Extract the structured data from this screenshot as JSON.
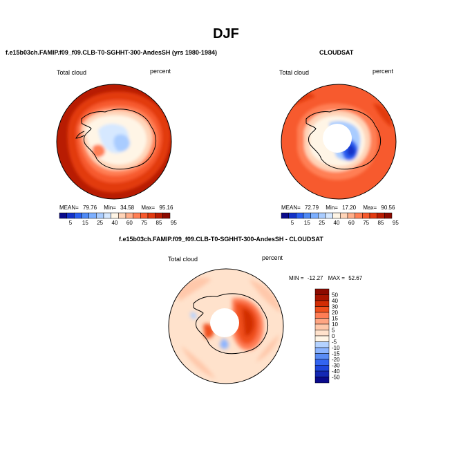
{
  "title": "DJF",
  "colors": {
    "abs_scale": [
      "#0a0a8c",
      "#1432c8",
      "#2a5ff0",
      "#4f8af5",
      "#7cafff",
      "#a9ccff",
      "#d6e8ff",
      "#fff5e6",
      "#ffd4b8",
      "#ffae8a",
      "#ff7f55",
      "#f75a2e",
      "#e23a10",
      "#b81c02",
      "#8c0a00"
    ],
    "diff_scale": [
      "#0a0a8c",
      "#1428b4",
      "#1e46dc",
      "#3264f0",
      "#5a8cf5",
      "#8cb4ff",
      "#b4d2ff",
      "#fff5e6",
      "#ffe2cc",
      "#ffc8aa",
      "#ffa582",
      "#ff7d55",
      "#f0501e",
      "#d22d05",
      "#a81400",
      "#8c0a00"
    ],
    "land_outline": "#000000"
  },
  "chart_data": [
    {
      "type": "heatmap",
      "projection": "polar-stereographic-south",
      "title": "f.e15b03ch.FAMIP.f09_f09.CLB-T0-SGHHT-300-AndesSH (yrs 1980-1984)",
      "left_label": "Total cloud",
      "right_label": "percent",
      "stats": {
        "mean": "79.76",
        "min": "34.58",
        "max": "95.16"
      },
      "stats_labels": {
        "mean": "MEAN=",
        "min": "Min=",
        "max": "Max="
      },
      "colorbar_ticks": [
        "5",
        "15",
        "25",
        "40",
        "60",
        "75",
        "85",
        "95"
      ],
      "levels": [
        5,
        10,
        15,
        20,
        25,
        30,
        40,
        50,
        60,
        70,
        75,
        80,
        85,
        90,
        95
      ],
      "field": {
        "ocean": 92,
        "coast_ring": [
          85,
          75,
          60,
          50
        ],
        "interior": 40,
        "interior_low": 30,
        "west_low": 50
      }
    },
    {
      "type": "heatmap",
      "projection": "polar-stereographic-south",
      "title": "CLOUDSAT",
      "left_label": "Total cloud",
      "right_label": "percent",
      "stats": {
        "mean": "72.79",
        "min": "17.20",
        "max": "90.56"
      },
      "stats_labels": {
        "mean": "MEAN=",
        "min": "Min=",
        "max": "Max="
      },
      "colorbar_ticks": [
        "5",
        "15",
        "25",
        "40",
        "60",
        "75",
        "85",
        "95"
      ],
      "levels": [
        5,
        10,
        15,
        20,
        25,
        30,
        40,
        50,
        60,
        70,
        75,
        80,
        85,
        90,
        95
      ],
      "field": {
        "ocean": 85,
        "coast_ring": [
          75,
          60,
          50
        ],
        "interior": 40,
        "east_low": 20,
        "missing_pole": true
      }
    },
    {
      "type": "heatmap",
      "projection": "polar-stereographic-south",
      "title": "f.e15b03ch.FAMIP.f09_f09.CLB-T0-SGHHT-300-AndesSH - CLOUDSAT",
      "left_label": "Total cloud",
      "right_label": "percent",
      "stats": {
        "min": "-12.27",
        "max": "52.67"
      },
      "stats_labels": {
        "min": "MIN =",
        "max": "MAX ="
      },
      "colorbar_ticks": [
        "50",
        "40",
        "30",
        "20",
        "15",
        "10",
        "5",
        "0",
        "-5",
        "-10",
        "-15",
        "-20",
        "-30",
        "-40",
        "-50"
      ],
      "levels": [
        -50,
        -40,
        -30,
        -20,
        -15,
        -10,
        -5,
        0,
        5,
        10,
        15,
        20,
        30,
        40,
        50
      ],
      "field": {
        "ocean": 5,
        "ocean_patches": 10,
        "east_high": 40,
        "west_high": 30,
        "negative_spots": -10,
        "missing_pole": true
      }
    }
  ]
}
